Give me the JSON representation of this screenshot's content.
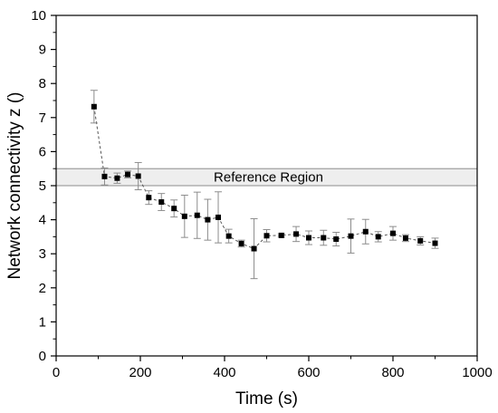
{
  "chart_data": {
    "type": "scatter",
    "xlabel": "Time (s)",
    "ylabel": "Network connectivity z ()",
    "xlim": [
      0,
      1000
    ],
    "ylim": [
      0,
      10
    ],
    "x_ticks": [
      0,
      200,
      400,
      600,
      800,
      1000
    ],
    "y_ticks": [
      0,
      1,
      2,
      3,
      4,
      5,
      6,
      7,
      8,
      9,
      10
    ],
    "grid": false,
    "connect_points": "dashed",
    "marker": "square",
    "colors": {
      "marker": "#000000",
      "connector": "#555555",
      "error_bar": "#8c8c8c",
      "region_fill": "#eeeeee",
      "region_edge": "#8c8c8c"
    },
    "reference_region": {
      "label": "Reference Region",
      "y_range": [
        5.0,
        5.5
      ]
    },
    "series": [
      {
        "x": [
          90,
          115,
          145,
          170,
          195,
          220,
          250,
          280,
          305,
          335,
          360,
          385,
          410,
          440,
          470,
          500,
          535,
          570,
          600,
          635,
          665,
          700,
          735,
          765,
          800,
          830,
          865,
          900
        ],
        "y": [
          7.32,
          5.27,
          5.22,
          5.33,
          5.28,
          4.65,
          4.52,
          4.33,
          4.1,
          4.13,
          4.0,
          4.07,
          3.52,
          3.3,
          3.15,
          3.53,
          3.54,
          3.58,
          3.47,
          3.47,
          3.43,
          3.52,
          3.65,
          3.5,
          3.6,
          3.46,
          3.38,
          3.31
        ],
        "error": [
          0.48,
          0.25,
          0.15,
          0.1,
          0.4,
          0.2,
          0.25,
          0.25,
          0.62,
          0.68,
          0.6,
          0.75,
          0.2,
          0.1,
          0.88,
          0.18,
          0.05,
          0.22,
          0.2,
          0.22,
          0.2,
          0.5,
          0.36,
          0.15,
          0.2,
          0.1,
          0.12,
          0.15
        ]
      }
    ]
  }
}
